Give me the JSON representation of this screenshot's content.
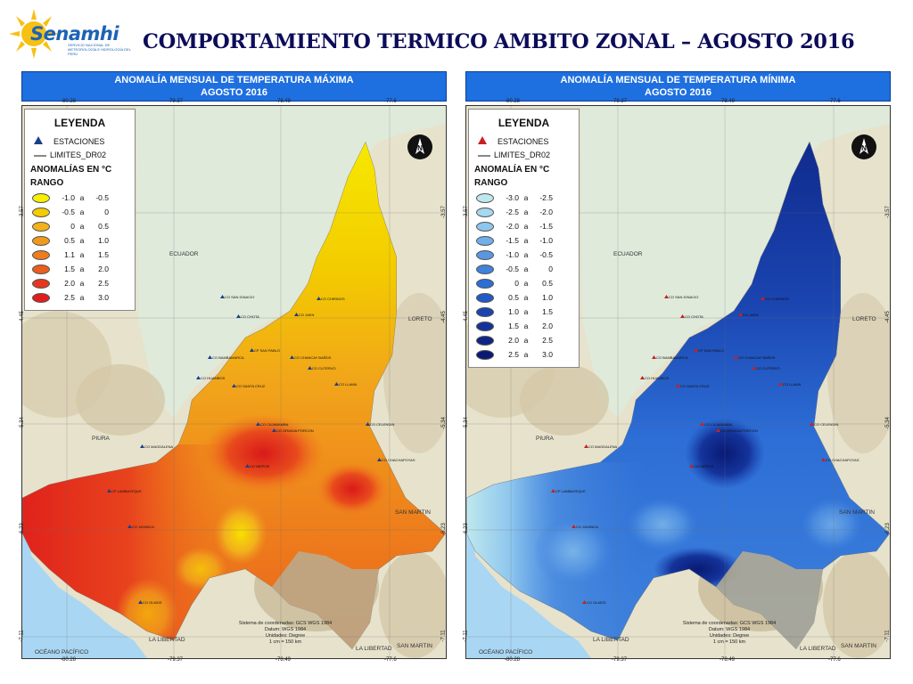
{
  "header": {
    "logo_text": "Senamhi",
    "logo_sub": "SERVICIO NACIONAL DE METEOROLOGÍA E HIDROLOGÍA DEL PERÚ",
    "title": "COMPORTAMIENTO TERMICO AMBITO ZONAL – AGOSTO 2016"
  },
  "colors": {
    "title": "#0c0c5a",
    "header_blue": "#1e6fe0",
    "ocean": "#a9d6f2",
    "land": "#e6e2cc"
  },
  "panels": [
    {
      "id": "max",
      "title_line1": "ANOMALÍA  MENSUAL DE TEMPERATURA MÁXIMA",
      "title_line2": "AGOSTO 2016",
      "legend": {
        "title": "LEYENDA",
        "stations": "ESTACIONES",
        "limits": "LIMITES_DR02",
        "anom_title": "ANOMALÍAS EN °C",
        "rango": "RANGO",
        "ranges": [
          {
            "a": "-1.0",
            "sep": "a",
            "b": "-0.5",
            "color": "#f7f000"
          },
          {
            "a": "-0.5",
            "sep": "a",
            "b": "0",
            "color": "#f5cc00"
          },
          {
            "a": "0",
            "sep": "a",
            "b": "0.5",
            "color": "#f3b21a"
          },
          {
            "a": "0.5",
            "sep": "a",
            "b": "1.0",
            "color": "#f09a1c"
          },
          {
            "a": "1.1",
            "sep": "a",
            "b": "1.5",
            "color": "#ee7d1c"
          },
          {
            "a": "1.5",
            "sep": "a",
            "b": "2.0",
            "color": "#eb5d1d"
          },
          {
            "a": "2.0",
            "sep": "a",
            "b": "2.5",
            "color": "#e8351e"
          },
          {
            "a": "2.5",
            "sep": "a",
            "b": "3.0",
            "color": "#e31c1c"
          }
        ]
      },
      "top_ticks": [
        "-80.28",
        "-79.37",
        "-78.49",
        "-77.6"
      ],
      "bottom_ticks": [
        "-80.28",
        "-79.37",
        "-78.49",
        "-77.6"
      ],
      "left_ticks": [
        "-3.57",
        "-4.45",
        "-5.34",
        "-6.23",
        "-7.11"
      ],
      "right_ticks": [
        "-3.57",
        "-4.45",
        "-5.34",
        "-6.23",
        "-7.11"
      ],
      "labels": {
        "ecuador": "ECUADOR",
        "loreto": "LORETO",
        "piura": "PIURA",
        "san_martin_1": "SAN MARTIN",
        "san_martin_2": "SAN MARTIN",
        "oceano": "OCÉANO PACÍFICO",
        "libertad_1": "LA LIBERTAD",
        "libertad_2": "LA LIBERTAD"
      },
      "coords": {
        "l1": "Sistema de coordenadas: GCS WGS 1984",
        "l2": "Datum: WGS 1984",
        "l3": "Unidades: Degree",
        "l4": "1 cm = 150 km"
      },
      "stations": [
        "CO SAN IGNACIO",
        "CO CHIRINOS",
        "CO CHOTA",
        "CO JAEN",
        "CP SAN PABLO",
        "CO BAMBAMARCA",
        "CO HUAMBOS",
        "CO CHANCAY BAÑOS",
        "CO CUTERVO",
        "CO SANTA CRUZ",
        "CO LLAMA",
        "CO CAJABAMBA",
        "CO GRANJA PORCON",
        "CO CELENDIN",
        "CO CHACHAPOYAS",
        "CO MAGDALENA",
        "CO NIEPOS",
        "CP LAMBAYEQUE",
        "CO JAYANCA",
        "CO OLMOS"
      ]
    },
    {
      "id": "min",
      "title_line1": "ANOMALÍA  MENSUAL DE TEMPERATURA MÍNIMA",
      "title_line2": "AGOSTO 2016",
      "legend": {
        "title": "LEYENDA",
        "stations": "ESTACIONES",
        "limits": "LIMITES_DR02",
        "anom_title": "ANOMALÍA EN °C",
        "rango": "RANGO",
        "ranges": [
          {
            "a": "-3.0",
            "sep": "a",
            "b": "-2.5",
            "color": "#bfe8ee"
          },
          {
            "a": "-2.5",
            "sep": "a",
            "b": "-2.0",
            "color": "#a6d8f0"
          },
          {
            "a": "-2.0",
            "sep": "a",
            "b": "-1.5",
            "color": "#8ec6ee"
          },
          {
            "a": "-1.5",
            "sep": "a",
            "b": "-1.0",
            "color": "#6faee9"
          },
          {
            "a": "-1.0",
            "sep": "a",
            "b": "-0.5",
            "color": "#5898e3"
          },
          {
            "a": "-0.5",
            "sep": "a",
            "b": "0",
            "color": "#3f82dc"
          },
          {
            "a": "0",
            "sep": "a",
            "b": "0.5",
            "color": "#2d6ed6"
          },
          {
            "a": "0.5",
            "sep": "a",
            "b": "1.0",
            "color": "#2259c6"
          },
          {
            "a": "1.0",
            "sep": "a",
            "b": "1.5",
            "color": "#1a44b0"
          },
          {
            "a": "1.5",
            "sep": "a",
            "b": "2.0",
            "color": "#14339a"
          },
          {
            "a": "2.0",
            "sep": "a",
            "b": "2.5",
            "color": "#0e2586"
          },
          {
            "a": "2.5",
            "sep": "a",
            "b": "3.0",
            "color": "#091a74"
          }
        ]
      },
      "top_ticks": [
        "-80.28",
        "-79.37",
        "-78.49",
        "-77.6"
      ],
      "bottom_ticks": [
        "-80.28",
        "-79.37",
        "-78.49",
        "-77.6"
      ],
      "left_ticks": [
        "-3.57",
        "-4.45",
        "-5.34",
        "-6.23",
        "-7.11"
      ],
      "right_ticks": [
        "-3.57",
        "-4.45",
        "-5.34",
        "-6.23",
        "-7.11"
      ],
      "labels": {
        "ecuador": "ECUADOR",
        "loreto": "LORETO",
        "piura": "PIURA",
        "san_martin_1": "SAN MARTIN",
        "san_martin_2": "SAN MARTIN",
        "oceano": "OCÉANO PACÍFICO",
        "libertad_1": "LA LIBERTAD",
        "libertad_2": "LA LIBERTAD"
      },
      "coords": {
        "l1": "Sistema de coordenadas: GCS WGS 1984",
        "l2": "Datum: WGS 1984",
        "l3": "Unidades: Degree",
        "l4": "1 cm = 150 km"
      },
      "stations": [
        "CO SAN IGNACIO",
        "CO CHIRINOS",
        "CO CHOTA",
        "CO JAEN",
        "CP SAN PABLO",
        "CO BAMBAMARCA",
        "CO HUAMBOS",
        "CO CHANCAY BAÑOS",
        "CO CUTERVO",
        "CO SANTA CRUZ",
        "CO LLAMA",
        "CO CAJABAMBA",
        "CO GRANJA PORCON",
        "CO CELENDIN",
        "CO CHACHAPOYAS",
        "CO MAGDALENA",
        "CO NIEPOS",
        "CP LAMBAYEQUE",
        "CO JAYANCA",
        "CO OLMOS"
      ]
    }
  ]
}
